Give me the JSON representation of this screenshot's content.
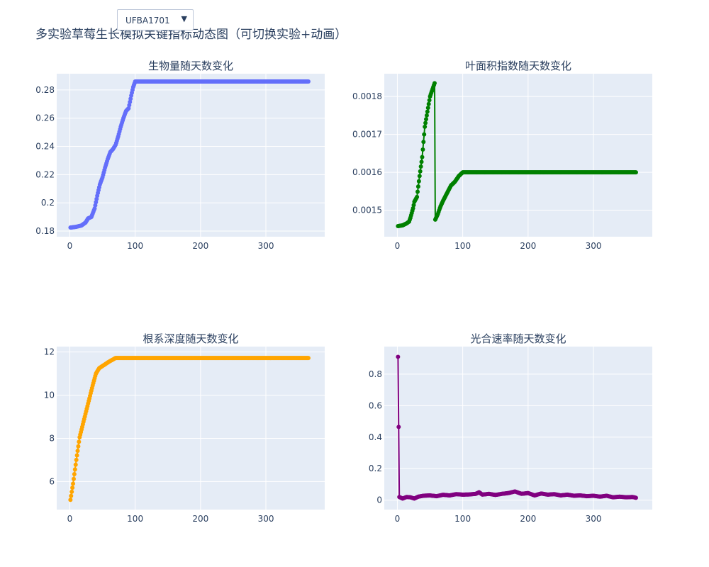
{
  "title": "多实验草莓生长模拟关键指标动态图（可切换实验+动画）",
  "dropdown": {
    "selected": "UFBA1701",
    "arrow": "▼"
  },
  "colors": {
    "plot_bg": "#e5ecf6",
    "grid": "#ffffff",
    "text": "#2a3f5f"
  },
  "chart_data": [
    {
      "type": "scatter",
      "mode": "lines+markers",
      "title": "生物量随天数变化",
      "color": "#636efa",
      "xlim": [
        -20,
        390
      ],
      "ylim": [
        0.176,
        0.2915
      ],
      "xticks": [
        0,
        100,
        200,
        300
      ],
      "yticks": [
        0.18,
        0.2,
        0.22,
        0.24,
        0.26,
        0.28
      ],
      "ytick_labels": [
        "0.18",
        "0.2",
        "0.22",
        "0.24",
        "0.26",
        "0.28"
      ],
      "points": [
        [
          1,
          0.1825
        ],
        [
          10,
          0.183
        ],
        [
          18,
          0.184
        ],
        [
          24,
          0.186
        ],
        [
          28,
          0.189
        ],
        [
          33,
          0.19
        ],
        [
          38,
          0.196
        ],
        [
          42,
          0.205
        ],
        [
          46,
          0.213
        ],
        [
          50,
          0.218
        ],
        [
          54,
          0.225
        ],
        [
          58,
          0.231
        ],
        [
          62,
          0.236
        ],
        [
          66,
          0.238
        ],
        [
          70,
          0.241
        ],
        [
          74,
          0.247
        ],
        [
          78,
          0.254
        ],
        [
          82,
          0.26
        ],
        [
          86,
          0.265
        ],
        [
          90,
          0.267
        ],
        [
          94,
          0.276
        ],
        [
          97,
          0.282
        ],
        [
          100,
          0.286
        ],
        [
          365,
          0.286
        ]
      ]
    },
    {
      "type": "scatter",
      "mode": "lines+markers",
      "title": "叶面积指数随天数变化",
      "color": "#008000",
      "xlim": [
        -20,
        390
      ],
      "ylim": [
        0.00143,
        0.00186
      ],
      "xticks": [
        0,
        100,
        200,
        300
      ],
      "yticks": [
        0.0015,
        0.0016,
        0.0017,
        0.0018
      ],
      "ytick_labels": [
        "0.0015",
        "0.0016",
        "0.0017",
        "0.0018"
      ],
      "points": [
        [
          1,
          0.001458
        ],
        [
          8,
          0.00146
        ],
        [
          14,
          0.001465
        ],
        [
          18,
          0.00147
        ],
        [
          20,
          0.00148
        ],
        [
          24,
          0.001505
        ],
        [
          26,
          0.001522
        ],
        [
          30,
          0.001535
        ],
        [
          34,
          0.00159
        ],
        [
          38,
          0.00164
        ],
        [
          42,
          0.00172
        ],
        [
          46,
          0.00176
        ],
        [
          50,
          0.0018
        ],
        [
          54,
          0.00182
        ],
        [
          57,
          0.001835
        ],
        [
          58,
          0.001475
        ],
        [
          62,
          0.00149
        ],
        [
          66,
          0.00151
        ],
        [
          70,
          0.001525
        ],
        [
          76,
          0.001545
        ],
        [
          82,
          0.001565
        ],
        [
          88,
          0.001575
        ],
        [
          94,
          0.00159
        ],
        [
          100,
          0.0016
        ],
        [
          365,
          0.0016
        ]
      ]
    },
    {
      "type": "scatter",
      "mode": "lines+markers",
      "title": "根系深度随天数变化",
      "color": "#ffa500",
      "xlim": [
        -20,
        390
      ],
      "ylim": [
        4.7,
        12.25
      ],
      "xticks": [
        0,
        100,
        200,
        300
      ],
      "yticks": [
        6,
        8,
        10,
        12
      ],
      "ytick_labels": [
        "6",
        "8",
        "10",
        "12"
      ],
      "points": [
        [
          1,
          5.15
        ],
        [
          5,
          5.9
        ],
        [
          10,
          7.0
        ],
        [
          15,
          8.05
        ],
        [
          20,
          8.65
        ],
        [
          25,
          9.25
        ],
        [
          30,
          9.85
        ],
        [
          35,
          10.45
        ],
        [
          40,
          11.0
        ],
        [
          45,
          11.25
        ],
        [
          50,
          11.35
        ],
        [
          55,
          11.45
        ],
        [
          60,
          11.55
        ],
        [
          70,
          11.72
        ],
        [
          365,
          11.72
        ]
      ]
    },
    {
      "type": "scatter",
      "mode": "lines+markers",
      "title": "光合速率随天数变化",
      "color": "#800080",
      "xlim": [
        -20,
        390
      ],
      "ylim": [
        -0.06,
        0.975
      ],
      "xticks": [
        0,
        100,
        200,
        300
      ],
      "yticks": [
        0,
        0.2,
        0.4,
        0.6,
        0.8
      ],
      "ytick_labels": [
        "0",
        "0.2",
        "0.4",
        "0.6",
        "0.8"
      ],
      "points": [
        [
          1,
          0.91
        ],
        [
          3,
          0.02
        ],
        [
          8,
          0.01
        ],
        [
          14,
          0.02
        ],
        [
          20,
          0.018
        ],
        [
          26,
          0.01
        ],
        [
          32,
          0.022
        ],
        [
          40,
          0.028
        ],
        [
          50,
          0.03
        ],
        [
          60,
          0.025
        ],
        [
          70,
          0.034
        ],
        [
          80,
          0.03
        ],
        [
          90,
          0.038
        ],
        [
          100,
          0.035
        ],
        [
          110,
          0.036
        ],
        [
          120,
          0.04
        ],
        [
          125,
          0.05
        ],
        [
          130,
          0.035
        ],
        [
          140,
          0.04
        ],
        [
          150,
          0.033
        ],
        [
          160,
          0.04
        ],
        [
          170,
          0.045
        ],
        [
          180,
          0.055
        ],
        [
          190,
          0.04
        ],
        [
          200,
          0.045
        ],
        [
          210,
          0.03
        ],
        [
          220,
          0.042
        ],
        [
          230,
          0.035
        ],
        [
          240,
          0.038
        ],
        [
          250,
          0.03
        ],
        [
          260,
          0.035
        ],
        [
          270,
          0.028
        ],
        [
          280,
          0.03
        ],
        [
          290,
          0.025
        ],
        [
          300,
          0.028
        ],
        [
          310,
          0.022
        ],
        [
          320,
          0.028
        ],
        [
          330,
          0.018
        ],
        [
          340,
          0.022
        ],
        [
          350,
          0.018
        ],
        [
          360,
          0.02
        ],
        [
          365,
          0.015
        ]
      ]
    }
  ]
}
